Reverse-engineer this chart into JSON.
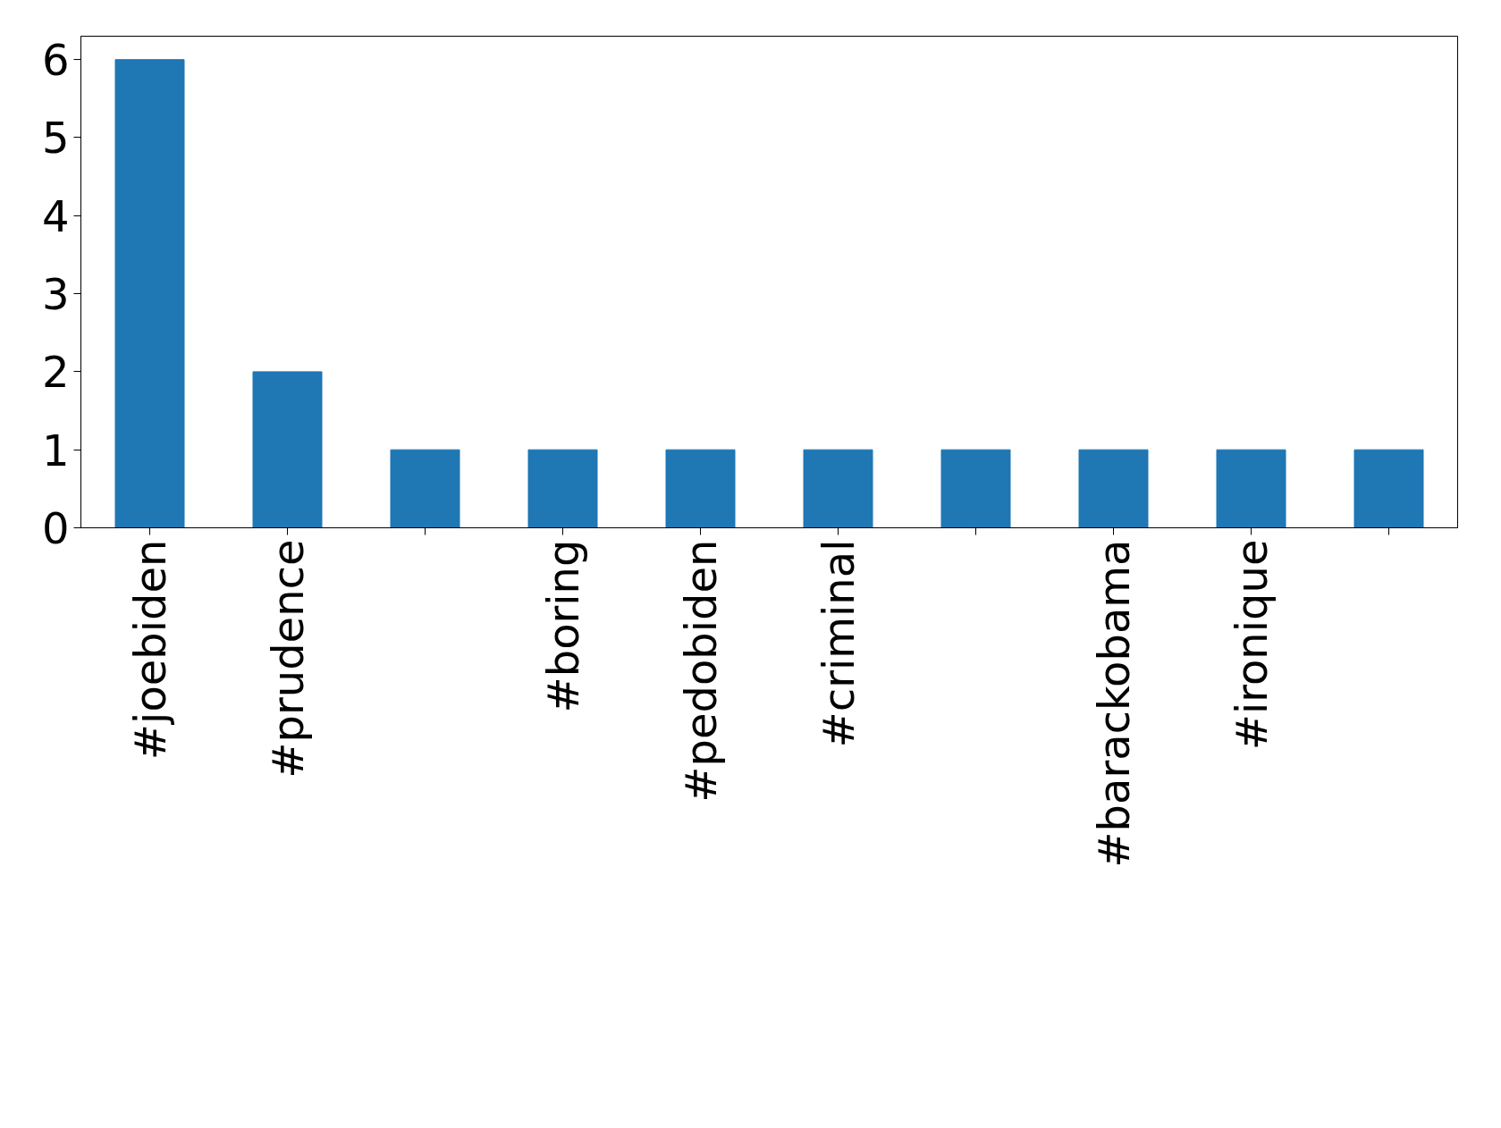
{
  "chart_data": {
    "type": "bar",
    "categories": [
      "#joebiden",
      "#prudence",
      null,
      "#boring",
      "#pedobiden",
      "#criminal",
      null,
      "#barackobama",
      "#ironique",
      null
    ],
    "values": [
      6,
      2,
      1,
      1,
      1,
      1,
      1,
      1,
      1,
      1
    ],
    "color": "#1f77b4",
    "ylim": [
      0,
      6.3
    ],
    "yticks": [
      0,
      1,
      2,
      3,
      4,
      5,
      6
    ],
    "grid": false
  }
}
